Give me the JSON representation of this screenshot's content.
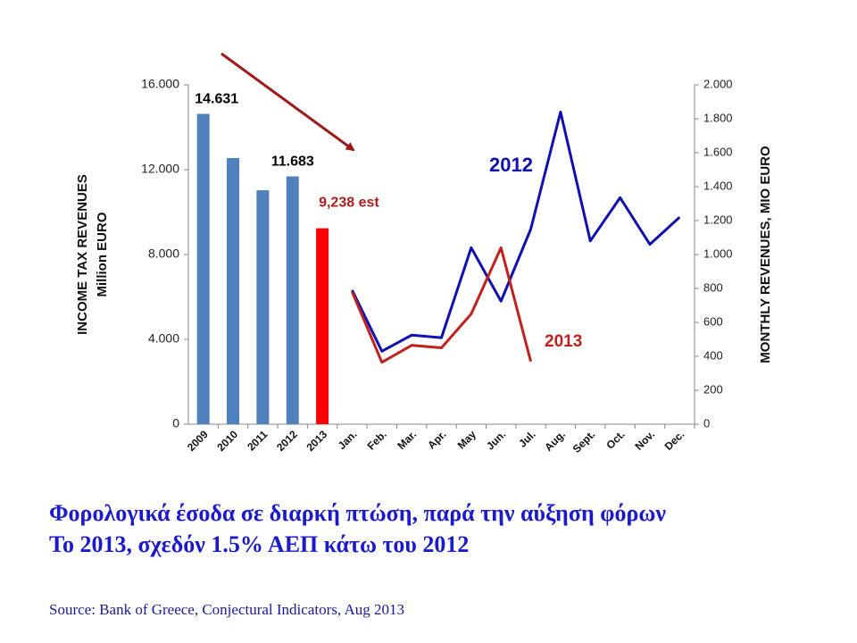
{
  "chart_data": {
    "type": "combo",
    "categories": [
      "2009",
      "2010",
      "2011",
      "2012",
      "2013",
      "Jan.",
      "Feb.",
      "Mar.",
      "Apr.",
      "May",
      "Jun.",
      "Jul.",
      "Aug.",
      "Sept.",
      "Oct.",
      "Nov.",
      "Dec."
    ],
    "bars": {
      "values": [
        14631,
        12550,
        11030,
        11683,
        9238,
        null,
        null,
        null,
        null,
        null,
        null,
        null,
        null,
        null,
        null,
        null,
        null
      ],
      "colors": [
        "#4f81bd",
        "#4f81bd",
        "#4f81bd",
        "#4f81bd",
        "#ff0000",
        null,
        null,
        null,
        null,
        null,
        null,
        null,
        null,
        null,
        null,
        null,
        null
      ],
      "value_labels": [
        "14.631",
        null,
        null,
        "11.683",
        "9,238 est",
        null,
        null,
        null,
        null,
        null,
        null,
        null,
        null,
        null,
        null,
        null,
        null
      ],
      "value_label_colors": [
        "#000000",
        null,
        null,
        "#000000",
        "#b01c1c",
        null,
        null,
        null,
        null,
        null,
        null,
        null,
        null,
        null,
        null,
        null,
        null
      ]
    },
    "series": [
      {
        "name": "2012",
        "color": "#1010b0",
        "axis": "y2",
        "values": [
          null,
          null,
          null,
          null,
          null,
          790,
          430,
          525,
          510,
          1040,
          725,
          1150,
          1840,
          1080,
          1335,
          1060,
          1220
        ]
      },
      {
        "name": "2013",
        "color": "#c0201e",
        "axis": "y2",
        "values": [
          null,
          null,
          null,
          null,
          null,
          780,
          365,
          465,
          450,
          650,
          1040,
          370,
          null,
          null,
          null,
          null,
          null
        ]
      }
    ],
    "ylabel": [
      "INCOME TAX REVENUES",
      "Million EURO"
    ],
    "y2label": "MONTHLY REVENUES, MIO EURO",
    "ylim": [
      0,
      16000
    ],
    "yticks": [
      0,
      {
        "value": 4000,
        "label": "4.000"
      },
      {
        "value": 8000,
        "label": "8.000"
      },
      {
        "value": 12000,
        "label": "12.000"
      },
      {
        "value": 16000,
        "label": "16.000"
      }
    ],
    "y2lim": [
      0,
      2000
    ],
    "y2ticks": [
      0,
      200,
      400,
      600,
      800,
      {
        "value": 1000,
        "label": "1.000"
      },
      {
        "value": 1200,
        "label": "1.200"
      },
      {
        "value": 1400,
        "label": "1.400"
      },
      {
        "value": 1600,
        "label": "1.600"
      },
      {
        "value": 1800,
        "label": "1.800"
      },
      {
        "value": 2000,
        "label": "2.000"
      }
    ],
    "notes": [
      "Φορολογικά έσοδα σε διαρκή πτώση, παρά την αύξηση φόρων",
      "Το 2013, σχεδόν 1.5% ΑΕΠ κάτω του 2012"
    ],
    "source": "Source: Bank of Greece, Conjectural Indicators, Aug 2013"
  }
}
